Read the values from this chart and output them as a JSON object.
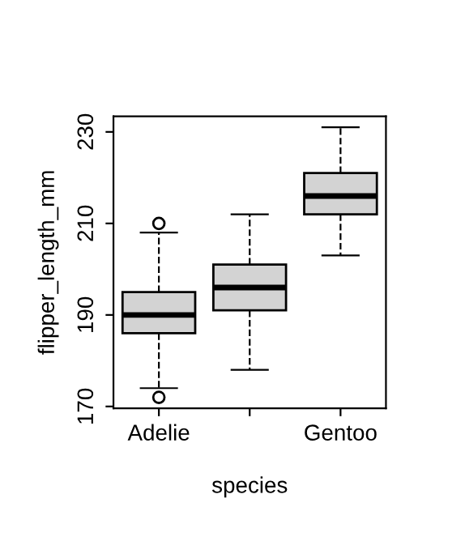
{
  "chart_data": {
    "type": "box",
    "xlabel": "species",
    "ylabel": "flipper_length_mm",
    "categories": [
      "Adelie",
      null,
      "Gentoo"
    ],
    "boxes": [
      {
        "low": 174,
        "q1": 186,
        "median": 190,
        "q3": 195,
        "high": 208,
        "outliers": [
          172,
          210
        ]
      },
      {
        "low": 178,
        "q1": 191,
        "median": 196,
        "q3": 201,
        "high": 212
      },
      {
        "low": 203,
        "q1": 212,
        "median": 216,
        "q3": 221,
        "high": 231
      }
    ],
    "color": "#d3d3d3",
    "ylim": [
      169.6,
      233.4
    ],
    "yticks": [
      170,
      190,
      210,
      230
    ],
    "grid": false
  }
}
